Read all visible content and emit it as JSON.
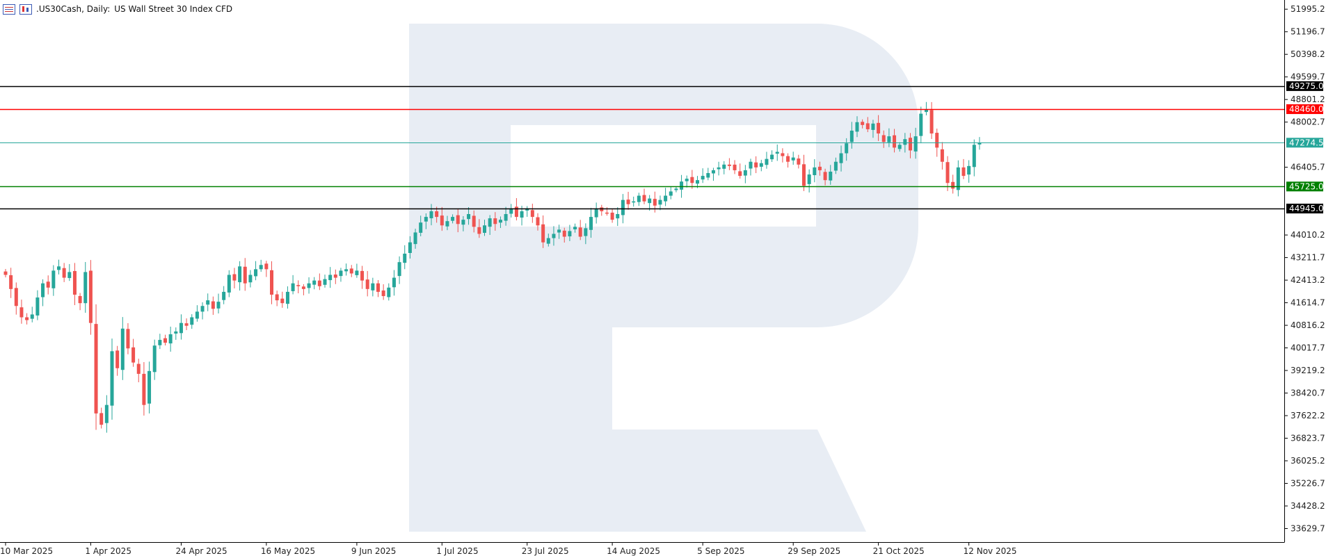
{
  "header": {
    "symbol": ".US30Cash, Daily:",
    "description": "US Wall Street 30 Index CFD"
  },
  "chart_data": {
    "type": "candlestick",
    "title": ".US30Cash, Daily:  US Wall Street 30 Index CFD",
    "y_ticks": [
      "51995.2",
      "51196.7",
      "50398.2",
      "49599.7",
      "48801.2",
      "48002.7",
      "46405.7",
      "44010.2",
      "43211.7",
      "42413.2",
      "41614.7",
      "40816.2",
      "40017.7",
      "39219.2",
      "38420.7",
      "37622.2",
      "36823.7",
      "36025.2",
      "35226.7",
      "34428.2",
      "33629.7"
    ],
    "y_tick_values": [
      51995.2,
      51196.7,
      50398.2,
      49599.7,
      48801.2,
      48002.7,
      46405.7,
      44010.2,
      43211.7,
      42413.2,
      41614.7,
      40816.2,
      40017.7,
      39219.2,
      38420.7,
      37622.2,
      36823.7,
      36025.2,
      35226.7,
      34428.2,
      33629.7
    ],
    "x_ticks": [
      "10 Mar 2025",
      "1 Apr 2025",
      "24 Apr 2025",
      "16 May 2025",
      "9 Jun 2025",
      "1 Jul 2025",
      "23 Jul 2025",
      "14 Aug 2025",
      "5 Sep 2025",
      "29 Sep 2025",
      "21 Oct 2025",
      "12 Nov 2025"
    ],
    "x_tick_index": [
      0,
      16,
      33,
      49,
      66,
      82,
      98,
      114,
      131,
      148,
      164,
      181
    ],
    "ylim": [
      33150,
      52320
    ],
    "bull_color": "#26a69a",
    "bear_color": "#ef5350",
    "levels": [
      {
        "label": "49275.0",
        "value": 49275.0,
        "color": "#000000"
      },
      {
        "label": "48460.0",
        "value": 48460.0,
        "color": "#ff0000"
      },
      {
        "label": "47274.5",
        "value": 47274.5,
        "color": "#26a69a"
      },
      {
        "label": "45725.0",
        "value": 45725.0,
        "color": "#008000"
      },
      {
        "label": "44945.0",
        "value": 44945.0,
        "color": "#000000"
      }
    ],
    "closes": [
      42600,
      42100,
      41500,
      41100,
      41000,
      41200,
      41800,
      42300,
      42150,
      42750,
      42900,
      42500,
      42700,
      41900,
      41600,
      42700,
      40900,
      37700,
      37300,
      38000,
      39900,
      39300,
      40700,
      40000,
      39500,
      39100,
      38000,
      39200,
      40100,
      40300,
      40200,
      40500,
      40600,
      40900,
      40800,
      41100,
      41300,
      41500,
      41700,
      41400,
      41650,
      42000,
      42600,
      42400,
      42900,
      42300,
      42600,
      42800,
      42950,
      42800,
      41900,
      41700,
      41600,
      42000,
      42300,
      42200,
      42100,
      42300,
      42400,
      42200,
      42450,
      42600,
      42500,
      42750,
      42800,
      42650,
      42750,
      42400,
      42100,
      42300,
      42000,
      41850,
      42150,
      42500,
      43050,
      43350,
      43750,
      44100,
      44450,
      44650,
      44850,
      44650,
      44350,
      44500,
      44650,
      44400,
      44550,
      44750,
      44300,
      44050,
      44350,
      44600,
      44400,
      44550,
      44750,
      44950,
      44650,
      44850,
      44950,
      44650,
      44350,
      43750,
      43900,
      44050,
      44200,
      43950,
      44150,
      44300,
      43950,
      44250,
      44650,
      44950,
      44850,
      44800,
      44550,
      44750,
      45250,
      45100,
      45200,
      45400,
      45200,
      45300,
      45050,
      45250,
      45400,
      45550,
      45650,
      45900,
      46000,
      45850,
      45950,
      46100,
      46200,
      46300,
      46400,
      46500,
      46450,
      46300,
      46100,
      46300,
      46600,
      46400,
      46550,
      46700,
      46850,
      46950,
      46800,
      46600,
      46750,
      46500,
      45750,
      46150,
      46400,
      46300,
      45950,
      46250,
      46600,
      46900,
      47250,
      47700,
      48000,
      47900,
      47750,
      47950,
      47600,
      47300,
      47500,
      47100,
      47200,
      47400,
      47000,
      47500,
      48300,
      48450,
      47600,
      47100,
      46600,
      45850,
      45650,
      46400,
      46100,
      46450,
      47200,
      47274.5
    ]
  },
  "watermark_color": "#e8edf4"
}
